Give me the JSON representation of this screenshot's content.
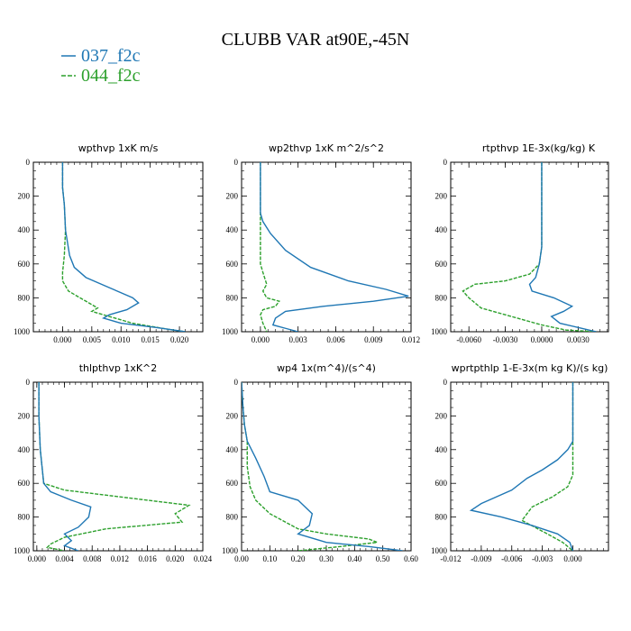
{
  "title": "CLUBB VAR at90E,-45N",
  "colors": {
    "s037": "#1f77b4",
    "s044": "#2ca02c"
  },
  "legend": [
    {
      "name": "037_f2c",
      "color": "#1f77b4",
      "dashed": false
    },
    {
      "name": "044_f2c",
      "color": "#2ca02c",
      "dashed": true
    }
  ],
  "chart_data": [
    {
      "type": "line",
      "title": "wpthvp  1xK m/s",
      "xlim": [
        -0.005,
        0.024
      ],
      "ylim": [
        1000,
        0
      ],
      "xticks": [
        "0.000",
        "0.005",
        "0.010",
        "0.015",
        "0.020"
      ],
      "xtick_values": [
        0.0,
        0.005,
        0.01,
        0.015,
        0.02
      ],
      "yticks": [
        "0",
        "200",
        "400",
        "600",
        "800",
        "1000"
      ],
      "series": [
        {
          "name": "037_f2c",
          "points": [
            [
              0,
              0
            ],
            [
              0,
              150
            ],
            [
              0.0003,
              250
            ],
            [
              0.0005,
              400
            ],
            [
              0.0012,
              550
            ],
            [
              0.002,
              620
            ],
            [
              0.004,
              680
            ],
            [
              0.008,
              740
            ],
            [
              0.012,
              800
            ],
            [
              0.013,
              830
            ],
            [
              0.011,
              870
            ],
            [
              0.008,
              900
            ],
            [
              0.007,
              920
            ],
            [
              0.01,
              950
            ],
            [
              0.016,
              975
            ],
            [
              0.021,
              1000
            ]
          ]
        },
        {
          "name": "044_f2c",
          "points": [
            [
              0,
              0
            ],
            [
              0,
              150
            ],
            [
              0.0003,
              250
            ],
            [
              0.0005,
              400
            ],
            [
              0.0003,
              550
            ],
            [
              0,
              650
            ],
            [
              0,
              700
            ],
            [
              0.001,
              760
            ],
            [
              0.004,
              820
            ],
            [
              0.006,
              860
            ],
            [
              0.005,
              880
            ],
            [
              0.007,
              900
            ],
            [
              0.012,
              950
            ],
            [
              0.018,
              985
            ],
            [
              0.021,
              1000
            ]
          ]
        }
      ]
    },
    {
      "type": "line",
      "title": "wp2thvp  1xK m^2/s^2",
      "xlim": [
        -0.0015,
        0.012
      ],
      "ylim": [
        1000,
        0
      ],
      "xticks": [
        "0.000",
        "0.003",
        "0.006",
        "0.009",
        "0.012"
      ],
      "xtick_values": [
        0.0,
        0.003,
        0.006,
        0.009,
        0.012
      ],
      "yticks": [
        "0",
        "200",
        "400",
        "600",
        "800",
        "1000"
      ],
      "series": [
        {
          "name": "037_f2c",
          "points": [
            [
              0,
              0
            ],
            [
              0,
              300
            ],
            [
              0.0002,
              350
            ],
            [
              0.0008,
              420
            ],
            [
              0.002,
              520
            ],
            [
              0.004,
              620
            ],
            [
              0.007,
              700
            ],
            [
              0.01,
              750
            ],
            [
              0.0118,
              790
            ],
            [
              0.009,
              820
            ],
            [
              0.005,
              850
            ],
            [
              0.002,
              880
            ],
            [
              0.0012,
              920
            ],
            [
              0.001,
              960
            ],
            [
              0.002,
              980
            ],
            [
              0.003,
              1000
            ]
          ]
        },
        {
          "name": "044_f2c",
          "points": [
            [
              0,
              0
            ],
            [
              0,
              300
            ],
            [
              0,
              400
            ],
            [
              0,
              500
            ],
            [
              0,
              600
            ],
            [
              0.0002,
              650
            ],
            [
              0.0005,
              720
            ],
            [
              0.0002,
              760
            ],
            [
              0.0005,
              800
            ],
            [
              0.0015,
              820
            ],
            [
              0.0012,
              850
            ],
            [
              0.0002,
              870
            ],
            [
              0,
              900
            ],
            [
              0.0002,
              950
            ],
            [
              0.0005,
              1000
            ]
          ]
        }
      ]
    },
    {
      "type": "line",
      "title": "rtpthvp  1E-3x(kg/kg) K",
      "xlim": [
        -0.0075,
        0.0055
      ],
      "ylim": [
        1000,
        0
      ],
      "xticks": [
        "-0.0060",
        "-0.0030",
        "0.0000",
        "0.0030"
      ],
      "xtick_values": [
        -0.006,
        -0.003,
        0.0,
        0.003
      ],
      "yticks": [
        "0",
        "200",
        "400",
        "600",
        "800",
        "1000"
      ],
      "series": [
        {
          "name": "037_f2c",
          "points": [
            [
              0,
              0
            ],
            [
              0,
              400
            ],
            [
              0,
              500
            ],
            [
              -0.0002,
              600
            ],
            [
              -0.0005,
              680
            ],
            [
              -0.001,
              720
            ],
            [
              -0.0008,
              760
            ],
            [
              0.001,
              800
            ],
            [
              0.0025,
              850
            ],
            [
              0.0018,
              880
            ],
            [
              0.0008,
              910
            ],
            [
              0.0015,
              950
            ],
            [
              0.003,
              975
            ],
            [
              0.0045,
              1000
            ]
          ]
        },
        {
          "name": "044_f2c",
          "points": [
            [
              0,
              0
            ],
            [
              0,
              400
            ],
            [
              0,
              500
            ],
            [
              -0.0002,
              600
            ],
            [
              -0.001,
              660
            ],
            [
              -0.003,
              700
            ],
            [
              -0.0055,
              720
            ],
            [
              -0.0065,
              760
            ],
            [
              -0.006,
              800
            ],
            [
              -0.005,
              860
            ],
            [
              -0.002,
              920
            ],
            [
              0,
              960
            ],
            [
              0.002,
              990
            ],
            [
              0.0045,
              1000
            ]
          ]
        }
      ]
    },
    {
      "type": "line",
      "title": "thlpthvp  1xK^2",
      "xlim": [
        -0.0005,
        0.024
      ],
      "ylim": [
        1000,
        0
      ],
      "xticks": [
        "0.000",
        "0.004",
        "0.008",
        "0.012",
        "0.016",
        "0.020",
        "0.024"
      ],
      "xtick_values": [
        0.0,
        0.004,
        0.008,
        0.012,
        0.016,
        0.02,
        0.024
      ],
      "yticks": [
        "0",
        "200",
        "400",
        "600",
        "800",
        "1000"
      ],
      "series": [
        {
          "name": "037_f2c",
          "points": [
            [
              0.0003,
              0
            ],
            [
              0.0003,
              200
            ],
            [
              0.0005,
              400
            ],
            [
              0.0008,
              520
            ],
            [
              0.001,
              600
            ],
            [
              0.002,
              650
            ],
            [
              0.005,
              700
            ],
            [
              0.0078,
              740
            ],
            [
              0.0075,
              800
            ],
            [
              0.006,
              860
            ],
            [
              0.004,
              900
            ],
            [
              0.005,
              940
            ],
            [
              0.004,
              970
            ],
            [
              0.006,
              1000
            ]
          ]
        },
        {
          "name": "044_f2c",
          "points": [
            [
              0.0003,
              0
            ],
            [
              0.0003,
              200
            ],
            [
              0.0005,
              400
            ],
            [
              0.0008,
              520
            ],
            [
              0.001,
              600
            ],
            [
              0.004,
              640
            ],
            [
              0.012,
              680
            ],
            [
              0.018,
              710
            ],
            [
              0.022,
              730
            ],
            [
              0.02,
              780
            ],
            [
              0.021,
              830
            ],
            [
              0.01,
              870
            ],
            [
              0.004,
              920
            ],
            [
              0.002,
              960
            ],
            [
              0.0015,
              980
            ],
            [
              0.004,
              1000
            ]
          ]
        }
      ]
    },
    {
      "type": "line",
      "title": "wp4  1x(m^4)/(s^4)",
      "xlim": [
        0.0,
        0.6
      ],
      "ylim": [
        1000,
        0
      ],
      "xticks": [
        "0.00",
        "0.10",
        "0.20",
        "0.30",
        "0.40",
        "0.50",
        "0.60"
      ],
      "xtick_values": [
        0.0,
        0.1,
        0.2,
        0.3,
        0.4,
        0.5,
        0.6
      ],
      "yticks": [
        "0",
        "200",
        "400",
        "600",
        "800",
        "1000"
      ],
      "series": [
        {
          "name": "037_f2c",
          "points": [
            [
              0,
              0
            ],
            [
              0.005,
              150
            ],
            [
              0.01,
              250
            ],
            [
              0.02,
              350
            ],
            [
              0.05,
              450
            ],
            [
              0.08,
              560
            ],
            [
              0.1,
              650
            ],
            [
              0.2,
              700
            ],
            [
              0.25,
              780
            ],
            [
              0.24,
              850
            ],
            [
              0.2,
              900
            ],
            [
              0.3,
              950
            ],
            [
              0.45,
              975
            ],
            [
              0.57,
              1000
            ]
          ]
        },
        {
          "name": "044_f2c",
          "points": [
            [
              0,
              0
            ],
            [
              0.005,
              150
            ],
            [
              0.01,
              250
            ],
            [
              0.02,
              350
            ],
            [
              0.02,
              500
            ],
            [
              0.03,
              620
            ],
            [
              0.05,
              700
            ],
            [
              0.1,
              780
            ],
            [
              0.2,
              870
            ],
            [
              0.3,
              900
            ],
            [
              0.45,
              930
            ],
            [
              0.48,
              950
            ],
            [
              0.35,
              975
            ],
            [
              0.2,
              1000
            ]
          ]
        }
      ]
    },
    {
      "type": "line",
      "title": "wprtpthlp  1-E-3x(m kg K)/(s kg)",
      "xlim": [
        -0.012,
        0.0035
      ],
      "ylim": [
        1000,
        0
      ],
      "xticks": [
        "-0.012",
        "-0.009",
        "-0.006",
        "-0.003",
        "0.000"
      ],
      "xtick_values": [
        -0.012,
        -0.009,
        -0.006,
        -0.003,
        0.0
      ],
      "yticks": [
        "0",
        "200",
        "400",
        "600",
        "800",
        "1000"
      ],
      "series": [
        {
          "name": "037_f2c",
          "points": [
            [
              0,
              0
            ],
            [
              0,
              350
            ],
            [
              -0.0005,
              400
            ],
            [
              -0.0015,
              460
            ],
            [
              -0.003,
              520
            ],
            [
              -0.0045,
              570
            ],
            [
              -0.006,
              640
            ],
            [
              -0.009,
              720
            ],
            [
              -0.01,
              760
            ],
            [
              -0.007,
              800
            ],
            [
              -0.004,
              850
            ],
            [
              -0.0015,
              900
            ],
            [
              -0.0003,
              950
            ],
            [
              0,
              1000
            ]
          ]
        },
        {
          "name": "044_f2c",
          "points": [
            [
              0,
              0
            ],
            [
              0,
              350
            ],
            [
              0,
              450
            ],
            [
              0,
              550
            ],
            [
              -0.0005,
              620
            ],
            [
              -0.002,
              680
            ],
            [
              -0.004,
              740
            ],
            [
              -0.005,
              820
            ],
            [
              -0.0025,
              900
            ],
            [
              -0.001,
              950
            ],
            [
              0,
              1000
            ]
          ]
        }
      ]
    }
  ]
}
